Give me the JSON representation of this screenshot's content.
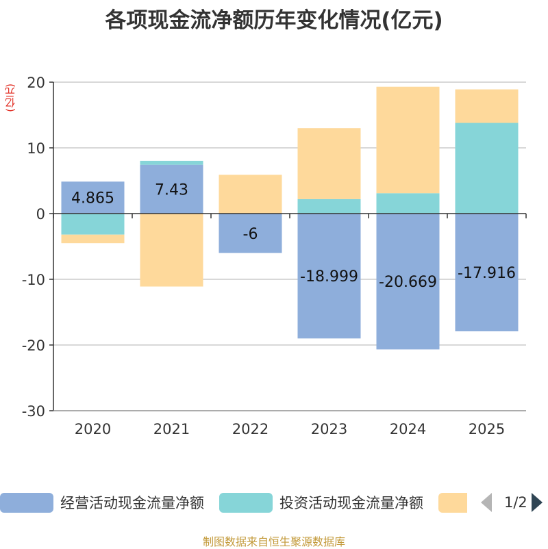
{
  "title": "各项现金流净额历年变化情况(亿元)",
  "unit_label": "(亿元)",
  "source": "制图数据来自恒生聚源数据库",
  "pager": {
    "text": "1/2"
  },
  "colors": {
    "operating": "#8eaedb",
    "investing": "#86d5d8",
    "financing": "#fed99b"
  },
  "chart_data": {
    "type": "bar",
    "stacked": true,
    "categories": [
      "2020",
      "2021",
      "2022",
      "2023",
      "2024",
      "2025"
    ],
    "series": [
      {
        "name": "经营活动现金流量净额",
        "color": "#8eaedb",
        "values": [
          4.865,
          7.43,
          -6,
          -18.999,
          -20.669,
          -17.916
        ],
        "labels": [
          "4.865",
          "7.43",
          "-6",
          "-18.999",
          "-20.669",
          "-17.916"
        ]
      },
      {
        "name": "投资活动现金流量净额",
        "color": "#86d5d8",
        "values": [
          -3.2,
          0.6,
          0,
          2.2,
          3.1,
          13.8
        ]
      },
      {
        "name": "",
        "color": "#fed99b",
        "values": [
          -1.3,
          -11.1,
          5.9,
          10.8,
          16.2,
          5.1
        ]
      }
    ],
    "ylabel": "(亿元)",
    "ylim": [
      -30,
      20
    ],
    "yticks": [
      20,
      10,
      0,
      -10,
      -20,
      -30
    ],
    "grid": true,
    "legend_position": "bottom"
  }
}
